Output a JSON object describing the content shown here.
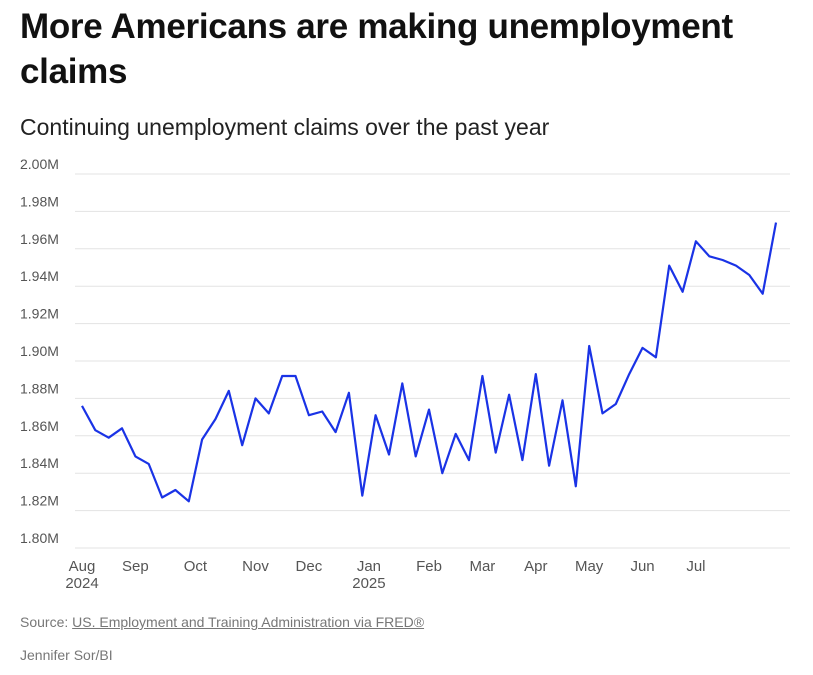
{
  "title": "More Americans are making unemployment claims",
  "subtitle": "Continuing unemployment claims over the past year",
  "source_prefix": "Source: ",
  "source_link": "US. Employment and Training Administration via FRED®",
  "credit": "Jennifer Sor/BI",
  "line_color": "#1a33e6",
  "chart_data": {
    "type": "line",
    "title": "Continuing unemployment claims over the past year",
    "xlabel": "",
    "ylabel": "",
    "ylim": [
      1.8,
      2.0
    ],
    "y_ticks": [
      {
        "value": 2.0,
        "label": "2.00M"
      },
      {
        "value": 1.98,
        "label": "1.98M"
      },
      {
        "value": 1.96,
        "label": "1.96M"
      },
      {
        "value": 1.94,
        "label": "1.94M"
      },
      {
        "value": 1.92,
        "label": "1.92M"
      },
      {
        "value": 1.9,
        "label": "1.90M"
      },
      {
        "value": 1.88,
        "label": "1.88M"
      },
      {
        "value": 1.86,
        "label": "1.86M"
      },
      {
        "value": 1.84,
        "label": "1.84M"
      },
      {
        "value": 1.82,
        "label": "1.82M"
      },
      {
        "value": 1.8,
        "label": "1.80M"
      }
    ],
    "x_ticks": [
      {
        "index": 0,
        "label": "Aug",
        "sublabel": "2024"
      },
      {
        "index": 4,
        "label": "Sep",
        "sublabel": ""
      },
      {
        "index": 8.5,
        "label": "Oct",
        "sublabel": ""
      },
      {
        "index": 13,
        "label": "Nov",
        "sublabel": ""
      },
      {
        "index": 17,
        "label": "Dec",
        "sublabel": ""
      },
      {
        "index": 21.5,
        "label": "Jan",
        "sublabel": "2025"
      },
      {
        "index": 26,
        "label": "Feb",
        "sublabel": ""
      },
      {
        "index": 30,
        "label": "Mar",
        "sublabel": ""
      },
      {
        "index": 34,
        "label": "Apr",
        "sublabel": ""
      },
      {
        "index": 38,
        "label": "May",
        "sublabel": ""
      },
      {
        "index": 42,
        "label": "Jun",
        "sublabel": ""
      },
      {
        "index": 46,
        "label": "Jul",
        "sublabel": ""
      }
    ],
    "series": [
      {
        "name": "Continuing claims (millions)",
        "values": [
          1.876,
          1.863,
          1.859,
          1.864,
          1.849,
          1.845,
          1.827,
          1.831,
          1.825,
          1.858,
          1.869,
          1.884,
          1.855,
          1.88,
          1.872,
          1.892,
          1.892,
          1.871,
          1.873,
          1.862,
          1.883,
          1.828,
          1.871,
          1.85,
          1.888,
          1.849,
          1.874,
          1.84,
          1.861,
          1.847,
          1.892,
          1.851,
          1.882,
          1.847,
          1.893,
          1.844,
          1.879,
          1.833,
          1.908,
          1.872,
          1.877,
          1.893,
          1.907,
          1.902,
          1.951,
          1.937,
          1.964,
          1.956,
          1.954,
          1.951,
          1.946,
          1.936,
          1.974
        ]
      }
    ]
  }
}
